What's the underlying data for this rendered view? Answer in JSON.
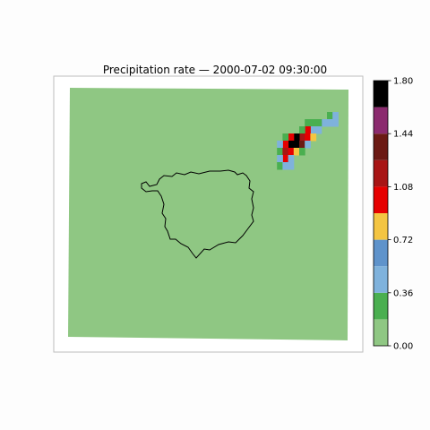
{
  "chart_data": {
    "type": "heatmap",
    "title": "Precipitation rate — 2000-07-02 09:30:00",
    "colorbar": {
      "levels": [
        0.0,
        0.18,
        0.36,
        0.54,
        0.72,
        0.9,
        1.08,
        1.26,
        1.44,
        1.62,
        1.8
      ],
      "colors": [
        "#8fc783",
        "#4aaf50",
        "#7fb2dc",
        "#5f93cb",
        "#f4c542",
        "#e60000",
        "#a81515",
        "#6b1a14",
        "#8b2a6e",
        "#000000"
      ],
      "tick_labels": [
        "0.00",
        "0.36",
        "0.72",
        "1.08",
        "1.44",
        "1.80"
      ]
    },
    "background_value": 0.0,
    "cells": [
      {
        "col": 15,
        "row": 1,
        "value": 0.25
      },
      {
        "col": 16,
        "row": 1,
        "value": 0.45
      },
      {
        "col": 14,
        "row": 2,
        "value": 0.5
      },
      {
        "col": 15,
        "row": 2,
        "value": 0.45
      },
      {
        "col": 16,
        "row": 2,
        "value": 0.45
      },
      {
        "col": 13,
        "row": 2,
        "value": 0.25
      },
      {
        "col": 12,
        "row": 2,
        "value": 0.25
      },
      {
        "col": 11,
        "row": 2,
        "value": 0.25
      },
      {
        "col": 12,
        "row": 3,
        "value": 0.5
      },
      {
        "col": 13,
        "row": 3,
        "value": 0.5
      },
      {
        "col": 11,
        "row": 3,
        "value": 1.0
      },
      {
        "col": 10,
        "row": 3,
        "value": 0.25
      },
      {
        "col": 10,
        "row": 4,
        "value": 1.1
      },
      {
        "col": 11,
        "row": 4,
        "value": 1.0
      },
      {
        "col": 12,
        "row": 4,
        "value": 0.8
      },
      {
        "col": 9,
        "row": 4,
        "value": 1.7
      },
      {
        "col": 8,
        "row": 4,
        "value": 1.0
      },
      {
        "col": 7,
        "row": 4,
        "value": 0.25
      },
      {
        "col": 8,
        "row": 5,
        "value": 1.7
      },
      {
        "col": 9,
        "row": 5,
        "value": 1.7
      },
      {
        "col": 10,
        "row": 5,
        "value": 1.3
      },
      {
        "col": 11,
        "row": 5,
        "value": 0.5
      },
      {
        "col": 7,
        "row": 5,
        "value": 1.0
      },
      {
        "col": 6,
        "row": 5,
        "value": 0.5
      },
      {
        "col": 6,
        "row": 6,
        "value": 0.25
      },
      {
        "col": 7,
        "row": 6,
        "value": 1.1
      },
      {
        "col": 8,
        "row": 6,
        "value": 1.0
      },
      {
        "col": 9,
        "row": 6,
        "value": 0.8
      },
      {
        "col": 10,
        "row": 6,
        "value": 0.25
      },
      {
        "col": 7,
        "row": 7,
        "value": 1.0
      },
      {
        "col": 8,
        "row": 7,
        "value": 0.5
      },
      {
        "col": 6,
        "row": 7,
        "value": 0.5
      },
      {
        "col": 6,
        "row": 8,
        "value": 0.25
      },
      {
        "col": 7,
        "row": 8,
        "value": 0.5
      },
      {
        "col": 8,
        "row": 8,
        "value": 0.45
      }
    ],
    "grid": "off",
    "legend": "colorbar right"
  }
}
